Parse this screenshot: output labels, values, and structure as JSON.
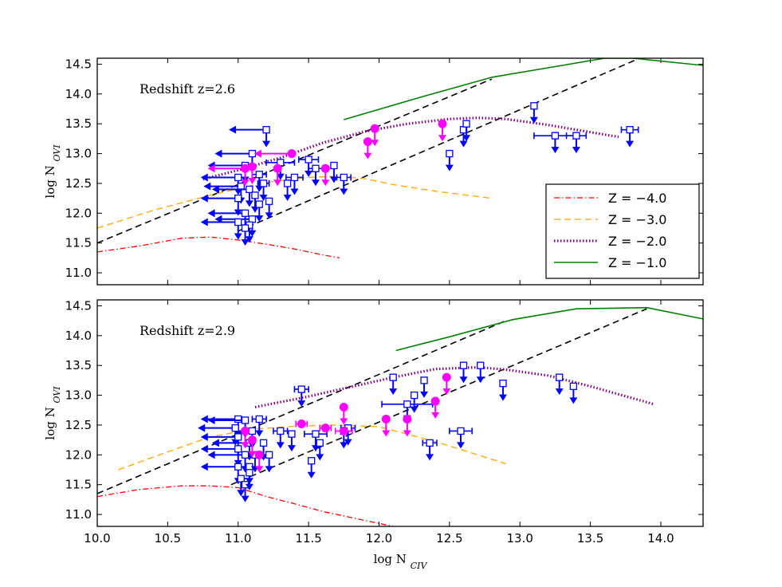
{
  "chart_data": [
    {
      "type": "scatter",
      "annotation": "Redshift z=2.6",
      "xlabel": "",
      "ylabel_main": "log N",
      "ylabel_sub": "OVI",
      "xlim": [
        10.0,
        14.3
      ],
      "ylim": [
        10.8,
        14.6
      ],
      "xticks": [
        10.0,
        10.5,
        11.0,
        11.5,
        12.0,
        12.5,
        13.0,
        13.5,
        14.0
      ],
      "yticks": [
        "11.0",
        "11.5",
        "12.0",
        "12.5",
        "13.0",
        "13.5",
        "14.0",
        "14.5"
      ],
      "colors": {
        "z4": "#ff0000",
        "z3": "#ffa500",
        "z2": "#800080",
        "z1": "#008000",
        "diag": "#000000",
        "blue": "#0000ff",
        "magenta": "#ff00ff"
      },
      "models": [
        {
          "name": "Z = -4.0",
          "key": "z4",
          "x": [
            10.0,
            10.3,
            10.6,
            10.8,
            11.0,
            11.2,
            11.4,
            11.6,
            11.72
          ],
          "y": [
            11.35,
            11.45,
            11.58,
            11.6,
            11.55,
            11.48,
            11.4,
            11.3,
            11.25
          ]
        },
        {
          "name": "Z = -3.0",
          "key": "z3",
          "x": [
            10.0,
            10.4,
            10.8,
            11.2,
            11.5,
            11.7,
            11.9,
            12.1,
            12.4,
            12.8
          ],
          "y": [
            11.75,
            12.05,
            12.3,
            12.52,
            12.6,
            12.62,
            12.58,
            12.48,
            12.37,
            12.25
          ]
        },
        {
          "name": "Z = -2.0",
          "key": "z2",
          "x": [
            10.75,
            11.0,
            11.3,
            11.6,
            11.9,
            12.2,
            12.5,
            12.7,
            12.9,
            13.2,
            13.5,
            13.7
          ],
          "y": [
            12.57,
            12.72,
            12.93,
            13.18,
            13.37,
            13.5,
            13.58,
            13.6,
            13.58,
            13.48,
            13.36,
            13.28
          ]
        },
        {
          "name": "Z = -1.0",
          "key": "z1",
          "x": [
            11.75,
            12.3,
            12.8,
            13.3,
            13.6,
            13.8,
            14.3
          ],
          "y": [
            13.57,
            13.95,
            14.28,
            14.48,
            14.6,
            14.6,
            14.48
          ]
        }
      ],
      "diagonals": [
        {
          "x": [
            10.0,
            12.8
          ],
          "y": [
            11.5,
            14.25
          ]
        },
        {
          "x": [
            11.0,
            13.85
          ],
          "y": [
            11.7,
            14.6
          ]
        }
      ],
      "blue_points": [
        {
          "x": 11.2,
          "y": 13.4,
          "left": true,
          "down": true
        },
        {
          "x": 11.1,
          "y": 13.0,
          "left": true,
          "down": true
        },
        {
          "x": 11.05,
          "y": 12.8,
          "left": true,
          "down": true
        },
        {
          "x": 11.3,
          "y": 12.85,
          "xerr": 0.1,
          "down": true
        },
        {
          "x": 11.5,
          "y": 12.9,
          "xerr": 0.07,
          "down": true
        },
        {
          "x": 11.55,
          "y": 12.75,
          "xerr": 0.05,
          "down": true
        },
        {
          "x": 11.68,
          "y": 12.8,
          "down": true
        },
        {
          "x": 11.0,
          "y": 12.6,
          "left": true,
          "down": true
        },
        {
          "x": 11.15,
          "y": 12.65,
          "xerr": 0.05,
          "down": true
        },
        {
          "x": 11.4,
          "y": 12.6,
          "xerr": 0.06,
          "down": true
        },
        {
          "x": 11.75,
          "y": 12.6,
          "xerr": 0.05,
          "down": true
        },
        {
          "x": 11.02,
          "y": 12.45,
          "left": true,
          "down": true
        },
        {
          "x": 11.18,
          "y": 12.5,
          "xerr": 0.04,
          "down": true
        },
        {
          "x": 11.35,
          "y": 12.5,
          "down": true
        },
        {
          "x": 11.08,
          "y": 12.4,
          "left": true,
          "down": true
        },
        {
          "x": 11.12,
          "y": 12.3,
          "down": true
        },
        {
          "x": 11.0,
          "y": 12.25,
          "left": true,
          "down": true
        },
        {
          "x": 11.22,
          "y": 12.2,
          "down": true
        },
        {
          "x": 11.15,
          "y": 12.15,
          "down": true
        },
        {
          "x": 11.05,
          "y": 12.0,
          "left": true,
          "down": true
        },
        {
          "x": 11.1,
          "y": 11.9,
          "left": true,
          "down": true
        },
        {
          "x": 11.0,
          "y": 11.85,
          "left": true,
          "down": true
        },
        {
          "x": 11.08,
          "y": 11.8,
          "down": true
        },
        {
          "x": 11.05,
          "y": 11.75,
          "down": true
        },
        {
          "x": 12.5,
          "y": 13.0,
          "down": true
        },
        {
          "x": 12.6,
          "y": 13.4,
          "down": true
        },
        {
          "x": 12.62,
          "y": 13.5,
          "down": true
        },
        {
          "x": 13.1,
          "y": 13.8,
          "down": true
        },
        {
          "x": 13.25,
          "y": 13.3,
          "xerr": 0.15,
          "down": true
        },
        {
          "x": 13.4,
          "y": 13.3,
          "xerr": 0.07,
          "down": true
        },
        {
          "x": 13.78,
          "y": 13.4,
          "xerr": 0.06,
          "down": true
        }
      ],
      "magenta_points": [
        {
          "x": 11.05,
          "y": 12.75,
          "left": true,
          "down": true
        },
        {
          "x": 11.1,
          "y": 12.78,
          "down": true
        },
        {
          "x": 11.38,
          "y": 13.0,
          "left": true
        },
        {
          "x": 11.28,
          "y": 12.75,
          "down": true
        },
        {
          "x": 11.62,
          "y": 12.75,
          "down": true
        },
        {
          "x": 11.92,
          "y": 13.2,
          "down": true
        },
        {
          "x": 11.97,
          "y": 13.42,
          "down": true
        },
        {
          "x": 12.45,
          "y": 13.5,
          "down": true
        }
      ]
    },
    {
      "type": "scatter",
      "annotation": "Redshift z=2.9",
      "xlabel_main": "log N",
      "xlabel_sub": "CIV",
      "ylabel_main": "log N",
      "ylabel_sub": "OVI",
      "xlim": [
        10.0,
        14.3
      ],
      "ylim": [
        10.8,
        14.6
      ],
      "xticks": [
        "10.0",
        "10.5",
        "11.0",
        "11.5",
        "12.0",
        "12.5",
        "13.0",
        "13.5",
        "14.0"
      ],
      "yticks": [
        "11.0",
        "11.5",
        "12.0",
        "12.5",
        "13.0",
        "13.5",
        "14.0",
        "14.5"
      ],
      "models": [
        {
          "name": "Z = -4.0",
          "key": "z4",
          "x": [
            10.0,
            10.3,
            10.6,
            10.8,
            11.0,
            11.2,
            11.4,
            11.6,
            11.8,
            12.0,
            12.1
          ],
          "y": [
            11.3,
            11.42,
            11.48,
            11.48,
            11.45,
            11.3,
            11.18,
            11.05,
            10.95,
            10.85,
            10.8
          ]
        },
        {
          "name": "Z = -3.0",
          "key": "z3",
          "x": [
            10.15,
            10.5,
            10.8,
            11.1,
            11.4,
            11.7,
            12.0,
            12.2,
            12.5,
            12.7,
            12.9
          ],
          "y": [
            11.75,
            12.05,
            12.3,
            12.43,
            12.48,
            12.5,
            12.47,
            12.35,
            12.15,
            12.0,
            11.85
          ]
        },
        {
          "name": "Z = -2.0",
          "key": "z2",
          "x": [
            11.12,
            11.5,
            11.8,
            12.1,
            12.4,
            12.7,
            12.9,
            13.2,
            13.5,
            13.8,
            13.95
          ],
          "y": [
            12.8,
            12.98,
            13.14,
            13.3,
            13.44,
            13.47,
            13.43,
            13.33,
            13.15,
            12.95,
            12.85
          ]
        },
        {
          "name": "Z = -1.0",
          "key": "z1",
          "x": [
            12.12,
            12.5,
            12.95,
            13.4,
            13.9,
            14.3
          ],
          "y": [
            13.75,
            13.98,
            14.27,
            14.45,
            14.47,
            14.28
          ]
        }
      ],
      "diagonals": [
        {
          "x": [
            10.0,
            12.9
          ],
          "y": [
            11.35,
            14.25
          ]
        },
        {
          "x": [
            10.95,
            13.9
          ],
          "y": [
            11.5,
            14.45
          ]
        }
      ],
      "blue_points": [
        {
          "x": 11.0,
          "y": 12.6,
          "left": true,
          "down": true
        },
        {
          "x": 11.05,
          "y": 12.58,
          "left": true,
          "down": true
        },
        {
          "x": 10.98,
          "y": 12.45,
          "left": true,
          "down": true
        },
        {
          "x": 11.0,
          "y": 12.3,
          "left": true,
          "down": true
        },
        {
          "x": 11.08,
          "y": 12.2,
          "left": true,
          "down": true
        },
        {
          "x": 11.0,
          "y": 12.1,
          "left": true,
          "down": true
        },
        {
          "x": 11.05,
          "y": 12.0,
          "left": true,
          "down": true
        },
        {
          "x": 11.0,
          "y": 11.8,
          "left": true,
          "down": true
        },
        {
          "x": 11.08,
          "y": 11.8,
          "down": true
        },
        {
          "x": 11.02,
          "y": 11.6,
          "down": true
        },
        {
          "x": 11.05,
          "y": 11.5,
          "down": true
        },
        {
          "x": 11.15,
          "y": 12.6,
          "xerr": 0.05,
          "down": true
        },
        {
          "x": 11.1,
          "y": 12.4,
          "down": true
        },
        {
          "x": 11.18,
          "y": 12.2,
          "down": true
        },
        {
          "x": 11.12,
          "y": 12.0,
          "down": true
        },
        {
          "x": 11.22,
          "y": 12.0,
          "down": true
        },
        {
          "x": 11.08,
          "y": 11.7,
          "down": true
        },
        {
          "x": 11.3,
          "y": 12.4,
          "xerr": 0.05,
          "down": true
        },
        {
          "x": 11.38,
          "y": 12.35,
          "down": true
        },
        {
          "x": 11.45,
          "y": 13.1,
          "xerr": 0.05,
          "down": true
        },
        {
          "x": 11.55,
          "y": 12.35,
          "xerr": 0.08,
          "down": true
        },
        {
          "x": 11.58,
          "y": 12.2,
          "down": true
        },
        {
          "x": 11.52,
          "y": 11.9,
          "down": true
        },
        {
          "x": 11.78,
          "y": 12.45,
          "xerr": 0.05,
          "down": true
        },
        {
          "x": 11.75,
          "y": 12.4,
          "down": true
        },
        {
          "x": 12.1,
          "y": 13.3,
          "down": true
        },
        {
          "x": 12.2,
          "y": 12.85,
          "xerr": 0.18,
          "down": true
        },
        {
          "x": 12.25,
          "y": 13.0,
          "down": true
        },
        {
          "x": 12.32,
          "y": 13.25,
          "down": true
        },
        {
          "x": 12.36,
          "y": 12.2,
          "xerr": 0.05,
          "down": true
        },
        {
          "x": 12.58,
          "y": 12.4,
          "xerr": 0.08,
          "down": true
        },
        {
          "x": 12.6,
          "y": 13.5,
          "down": true
        },
        {
          "x": 12.72,
          "y": 13.5,
          "down": true
        },
        {
          "x": 12.88,
          "y": 13.2,
          "down": true
        },
        {
          "x": 13.28,
          "y": 13.3,
          "down": true
        },
        {
          "x": 13.38,
          "y": 13.15,
          "down": true
        }
      ],
      "magenta_points": [
        {
          "x": 11.05,
          "y": 12.4,
          "down": true
        },
        {
          "x": 11.1,
          "y": 12.25,
          "down": true
        },
        {
          "x": 11.15,
          "y": 12.0,
          "down": true
        },
        {
          "x": 11.45,
          "y": 12.52,
          "xerr": 0.04
        },
        {
          "x": 11.62,
          "y": 12.45,
          "xerr": 0.04
        },
        {
          "x": 11.75,
          "y": 12.8,
          "down": true
        },
        {
          "x": 11.75,
          "y": 12.4,
          "xerr": 0.06
        },
        {
          "x": 12.05,
          "y": 12.6,
          "down": true
        },
        {
          "x": 12.2,
          "y": 12.6,
          "down": true
        },
        {
          "x": 12.4,
          "y": 12.9,
          "down": true
        },
        {
          "x": 12.48,
          "y": 13.3,
          "down": true
        }
      ]
    }
  ],
  "legend": {
    "entries": [
      "Z = −4.0",
      "Z = −3.0",
      "Z = −2.0",
      "Z = −1.0"
    ],
    "colors": [
      "#ff0000",
      "#ffa500",
      "#800080",
      "#008000"
    ]
  }
}
